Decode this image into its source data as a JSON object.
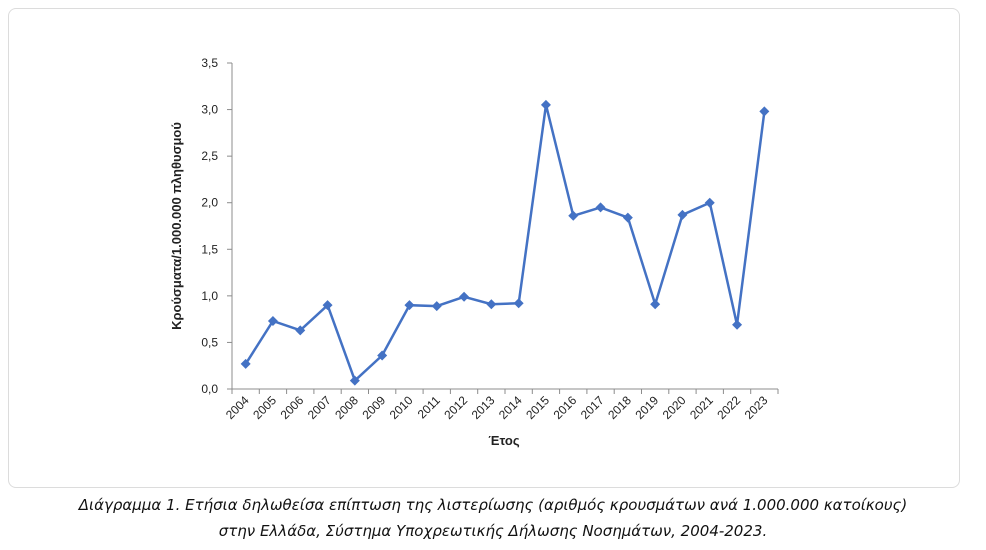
{
  "chart_data": {
    "type": "line",
    "title": "",
    "xlabel": "Έτος",
    "ylabel": "Κρούσματα/1.000.000 πληθυσμού",
    "ylim": [
      0,
      3.5
    ],
    "yticks": [
      "0,0",
      "0,5",
      "1,0",
      "1,5",
      "2,0",
      "2,5",
      "3,0",
      "3,5"
    ],
    "grid": false,
    "legend": "none",
    "series_color": "#4472C4",
    "x": [
      "2004",
      "2005",
      "2006",
      "2007",
      "2008",
      "2009",
      "2010",
      "2011",
      "2012",
      "2013",
      "2014",
      "2015",
      "2016",
      "2017",
      "2018",
      "2019",
      "2020",
      "2021",
      "2022",
      "2023"
    ],
    "series": [
      {
        "values": [
          0.27,
          0.73,
          0.63,
          0.9,
          0.09,
          0.36,
          0.9,
          0.89,
          0.99,
          0.91,
          0.92,
          3.05,
          1.86,
          1.95,
          1.84,
          0.91,
          1.87,
          2.0,
          0.69,
          2.98
        ]
      }
    ]
  },
  "caption": {
    "line1": "Διάγραμμα 1. Ετήσια δηλωθείσα επίπτωση της λιστερίωσης (αριθμός κρουσμάτων ανά 1.000.000 κατοίκους)",
    "line2": "στην Ελλάδα, Σύστημα Υποχρεωτικής Δήλωσης Νοσημάτων, 2004-2023."
  }
}
